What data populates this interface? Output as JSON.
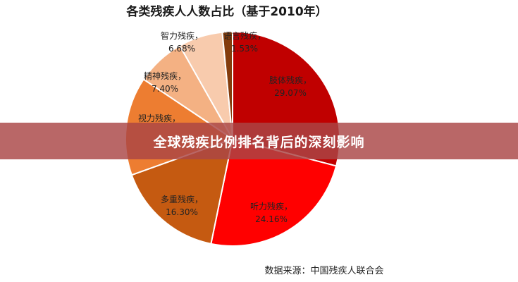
{
  "chart_data": {
    "type": "pie",
    "title": "各类残疾人人数占比（基于2010年）",
    "slices": [
      {
        "label": "肢体残疾",
        "value": 29.07,
        "value_text": "29.07%",
        "color": "#C00000"
      },
      {
        "label": "听力残疾",
        "value": 24.16,
        "value_text": "24.16%",
        "color": "#FF0000"
      },
      {
        "label": "多重残疾",
        "value": 16.3,
        "value_text": "16.30%",
        "color": "#C55A11"
      },
      {
        "label": "视力残疾",
        "value": 14.86,
        "value_text": "",
        "color": "#ED7D31"
      },
      {
        "label": "精神残疾",
        "value": 7.4,
        "value_text": "7.40%",
        "color": "#F4B183"
      },
      {
        "label": "智力残疾",
        "value": 6.68,
        "value_text": "6.68%",
        "color": "#F8CBAD"
      },
      {
        "label": "语言残疾",
        "value": 1.53,
        "value_text": "1.53%",
        "color": "#843C0C"
      }
    ],
    "legend": "none"
  },
  "source": "数据来源：中国残疾人联合会",
  "banner": {
    "text": "全球残疾比例排名背后的深刻影响"
  }
}
